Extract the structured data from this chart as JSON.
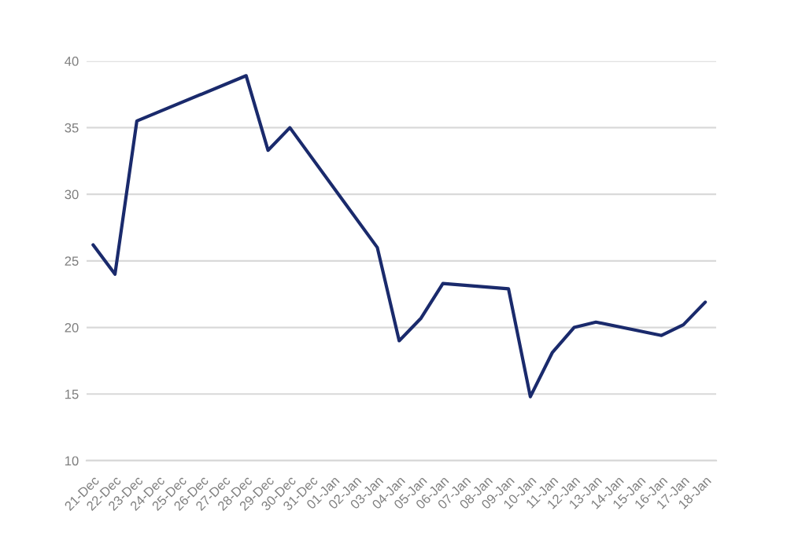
{
  "chart_data": {
    "type": "line",
    "categories": [
      "21-Dec",
      "22-Dec",
      "23-Dec",
      "24-Dec",
      "25-Dec",
      "26-Dec",
      "27-Dec",
      "28-Dec",
      "29-Dec",
      "30-Dec",
      "31-Dec",
      "01-Jan",
      "02-Jan",
      "03-Jan",
      "04-Jan",
      "05-Jan",
      "06-Jan",
      "07-Jan",
      "08-Jan",
      "09-Jan",
      "10-Jan",
      "11-Jan",
      "12-Jan",
      "13-Jan",
      "14-Jan",
      "15-Jan",
      "16-Jan",
      "17-Jan",
      "18-Jan"
    ],
    "series": [
      {
        "color": "#1a2a6c",
        "values": [
          26.2,
          24.0,
          35.5,
          null,
          null,
          null,
          null,
          38.9,
          33.3,
          35.0,
          null,
          null,
          null,
          26.0,
          19.0,
          20.7,
          23.3,
          null,
          null,
          22.9,
          14.8,
          18.1,
          20.0,
          20.4,
          null,
          null,
          19.4,
          20.2,
          21.9
        ]
      }
    ],
    "ylim": [
      10,
      40
    ],
    "yticks": [
      10,
      15,
      20,
      25,
      30,
      35,
      40
    ],
    "grid": "y",
    "marker": "none",
    "line_style": "solid"
  }
}
